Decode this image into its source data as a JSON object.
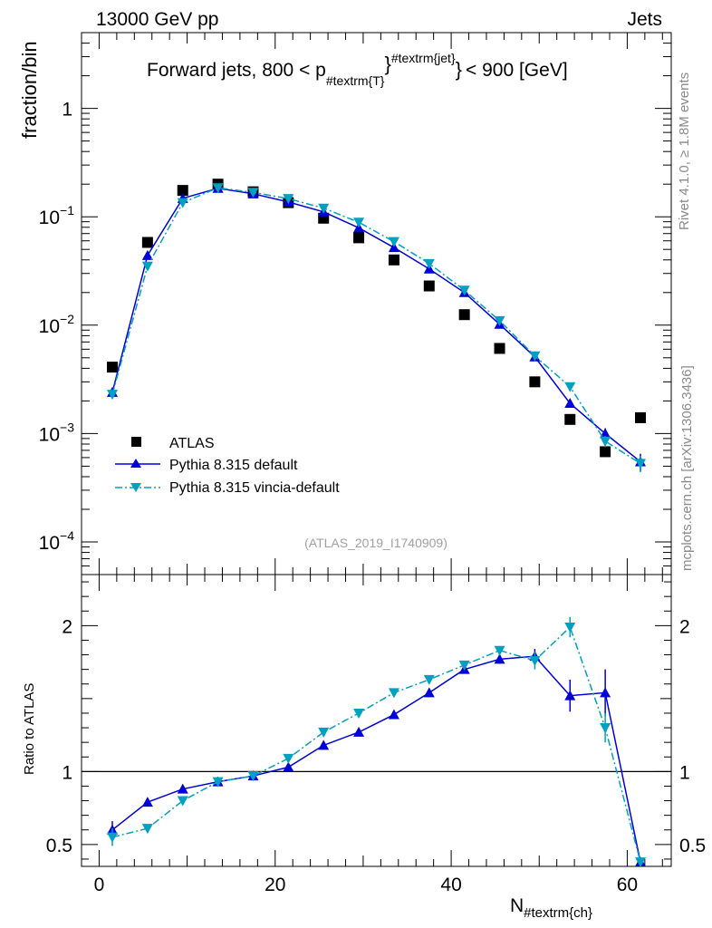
{
  "header": {
    "energy": "13000 GeV pp",
    "process": "Jets"
  },
  "side_labels": {
    "rivet": "Rivet 4.1.0, ≥ 1.8M events",
    "mcplots": "mcplots.cern.ch [arXiv:1306.3436]"
  },
  "chart_data": [
    {
      "type": "scatter",
      "panel": "main",
      "title": "Forward jets, 800 < p",
      "title_sub": "#textrm{T}",
      "title_sup": "#textrm{jet}",
      "title_tail": "< 900 [GeV]",
      "ylabel": "fraction/bin",
      "yscale": "log",
      "ylim": [
        5e-05,
        5
      ],
      "xlim": [
        -2,
        65
      ],
      "ytick_labels": [
        {
          "v": 1,
          "base": "1",
          "exp": ""
        },
        {
          "v": 0.1,
          "base": "10",
          "exp": "−1"
        },
        {
          "v": 0.01,
          "base": "10",
          "exp": "−2"
        },
        {
          "v": 0.001,
          "base": "10",
          "exp": "−3"
        },
        {
          "v": 0.0001,
          "base": "10",
          "exp": "−4"
        }
      ],
      "watermark": "(ATLAS_2019_I1740909)",
      "x": [
        1.5,
        5.5,
        9.5,
        13.5,
        17.5,
        21.5,
        25.5,
        29.5,
        33.5,
        37.5,
        41.5,
        45.5,
        49.5,
        53.5,
        57.5,
        61.5
      ],
      "series": [
        {
          "name": "ATLAS",
          "color": "#000000",
          "marker": "square",
          "values": [
            0.0041,
            0.058,
            0.175,
            0.2,
            0.17,
            0.135,
            0.097,
            0.064,
            0.04,
            0.023,
            0.0125,
            0.0061,
            0.003,
            0.00135,
            0.00068,
            0.0014
          ]
        },
        {
          "name": "Pythia 8.315 default",
          "color": "#0000d8",
          "marker": "triangle-up",
          "line": "solid",
          "values": [
            0.0024,
            0.044,
            0.148,
            0.183,
            0.163,
            0.137,
            0.111,
            0.079,
            0.052,
            0.033,
            0.02,
            0.0102,
            0.0051,
            0.0019,
            0.001,
            0.00055
          ],
          "errors": [
            0,
            0,
            0,
            0,
            0,
            0,
            0,
            0,
            0,
            0,
            0,
            0,
            0,
            0,
            0.00012,
            0.0001
          ]
        },
        {
          "name": "Pythia 8.315 vincia-default",
          "color": "#00a0c0",
          "marker": "triangle-down",
          "line": "dashdot",
          "values": [
            0.0023,
            0.035,
            0.135,
            0.185,
            0.168,
            0.147,
            0.12,
            0.089,
            0.059,
            0.037,
            0.021,
            0.011,
            0.0052,
            0.0027,
            0.00085,
            0.00053
          ],
          "errors": [
            0,
            0,
            0,
            0,
            0,
            0,
            0,
            0,
            0,
            0,
            0,
            0,
            0,
            0,
            0.0001,
            9e-05
          ]
        }
      ]
    },
    {
      "type": "line",
      "panel": "ratio",
      "ylabel": "Ratio to ATLAS",
      "xlabel": "N",
      "xlabel_sub": "#textrm{ch}",
      "ylim": [
        0.35,
        2.35
      ],
      "xlim": [
        -2,
        65
      ],
      "yticks": [
        0.5,
        1,
        2
      ],
      "ytick_labels": [
        "0.5",
        "1",
        "2"
      ],
      "xticks": [
        0,
        20,
        40,
        60
      ],
      "xtick_labels": [
        "0",
        "20",
        "40",
        "60"
      ],
      "reference_line": 1,
      "x": [
        1.5,
        5.5,
        9.5,
        13.5,
        17.5,
        21.5,
        25.5,
        29.5,
        33.5,
        37.5,
        41.5,
        45.5,
        49.5,
        53.5,
        57.5,
        61.5
      ],
      "series": [
        {
          "name": "Pythia 8.315 default",
          "color": "#0000d8",
          "marker": "triangle-up",
          "line": "solid",
          "values": [
            0.6,
            0.79,
            0.88,
            0.93,
            0.97,
            1.03,
            1.18,
            1.27,
            1.39,
            1.54,
            1.7,
            1.77,
            1.79,
            1.52,
            1.54,
            0.38
          ],
          "errors": [
            0.06,
            0,
            0,
            0,
            0,
            0,
            0,
            0,
            0,
            0,
            0,
            0.03,
            0.05,
            0.11,
            0.16,
            0
          ]
        },
        {
          "name": "Pythia 8.315 vincia-default",
          "color": "#00a0c0",
          "marker": "triangle-down",
          "line": "dashdot",
          "values": [
            0.55,
            0.61,
            0.8,
            0.93,
            0.97,
            1.09,
            1.27,
            1.4,
            1.54,
            1.63,
            1.73,
            1.83,
            1.76,
            1.99,
            1.3,
            0.38
          ],
          "errors": [
            0.06,
            0,
            0,
            0,
            0,
            0,
            0,
            0,
            0,
            0,
            0,
            0.03,
            0.06,
            0.07,
            0.1,
            0
          ]
        }
      ]
    }
  ]
}
